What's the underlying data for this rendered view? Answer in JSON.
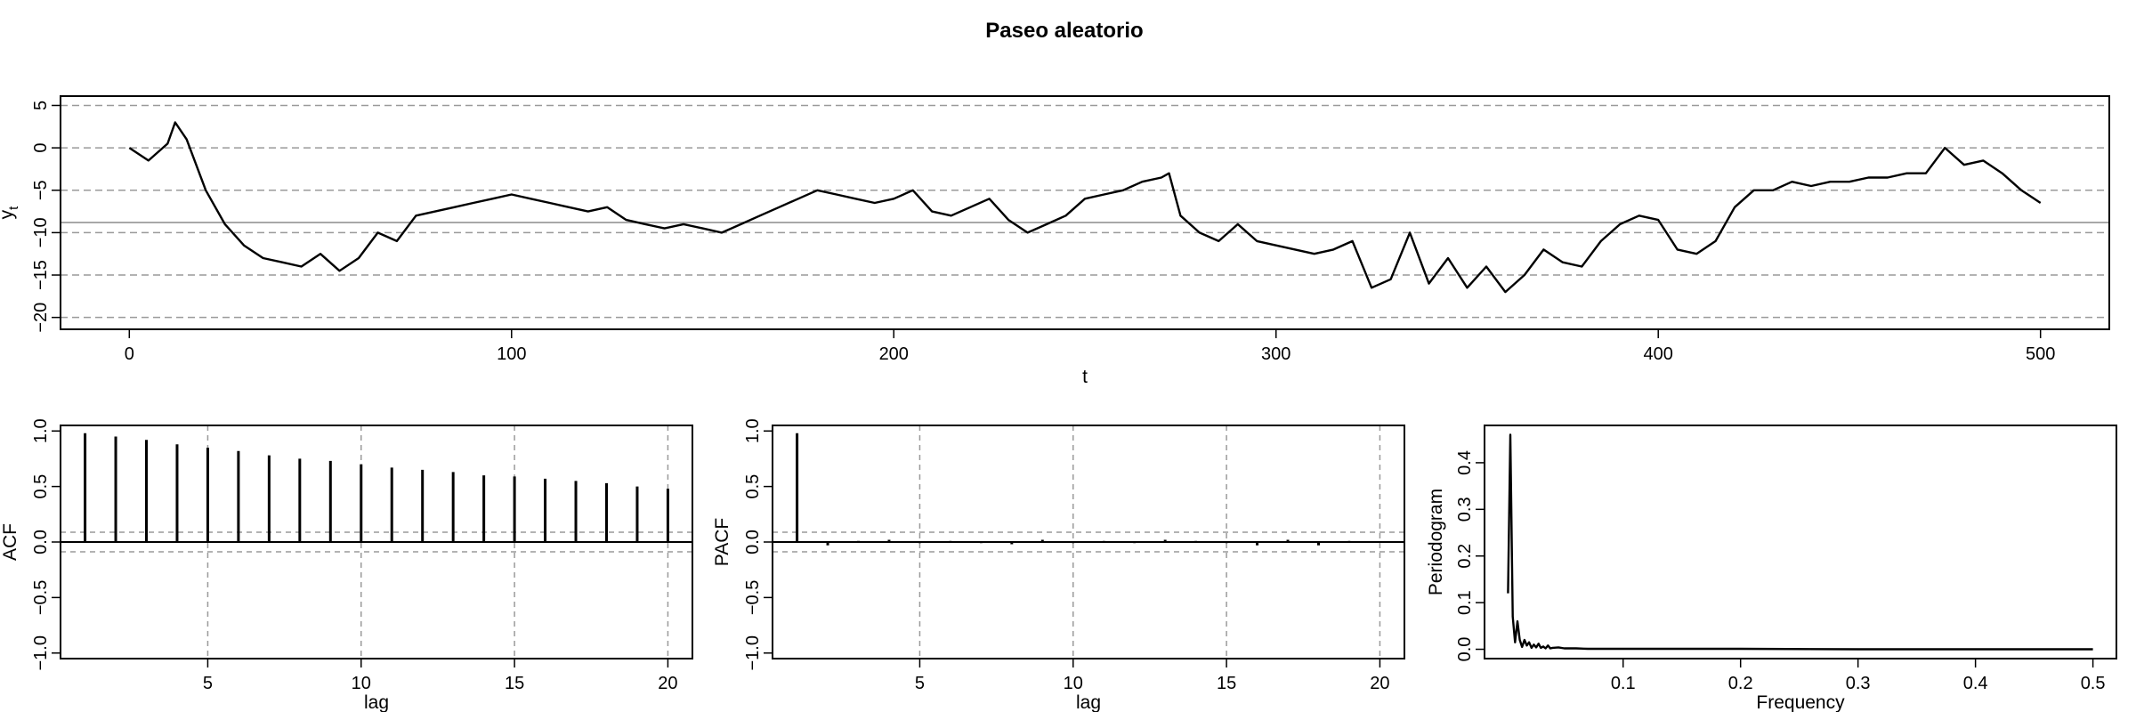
{
  "figure": {
    "title": "Paseo aleatorio"
  },
  "chart_data": [
    {
      "id": "ts",
      "type": "line",
      "title": "Paseo aleatorio",
      "xlabel": "t",
      "ylabel": "y",
      "ylabel_subscript": "t",
      "xlim": [
        -18,
        518
      ],
      "ylim": [
        -21.4,
        6.1
      ],
      "xticks": [
        0,
        100,
        200,
        300,
        400,
        500
      ],
      "yticks": [
        5,
        0,
        -5,
        -10,
        -15,
        -20
      ],
      "hlines_dashed": [
        5,
        0,
        -5,
        -10,
        -15,
        -20
      ],
      "hline_mean": -8.8,
      "x": [
        0,
        5,
        10,
        12,
        15,
        20,
        25,
        30,
        35,
        40,
        45,
        50,
        55,
        60,
        65,
        70,
        75,
        80,
        85,
        90,
        95,
        100,
        105,
        110,
        115,
        120,
        125,
        130,
        135,
        140,
        145,
        150,
        155,
        160,
        165,
        170,
        175,
        180,
        185,
        190,
        195,
        200,
        205,
        210,
        215,
        220,
        225,
        230,
        235,
        240,
        245,
        250,
        255,
        260,
        265,
        270,
        272,
        275,
        280,
        285,
        290,
        295,
        300,
        305,
        310,
        315,
        320,
        325,
        330,
        335,
        340,
        345,
        350,
        355,
        360,
        365,
        370,
        375,
        380,
        385,
        390,
        395,
        400,
        405,
        410,
        415,
        420,
        425,
        430,
        435,
        440,
        445,
        450,
        455,
        460,
        465,
        470,
        475,
        480,
        485,
        490,
        495,
        500
      ],
      "y": [
        0,
        -1.5,
        0.5,
        3,
        1,
        -5,
        -9,
        -11.5,
        -13,
        -13.5,
        -14,
        -12.5,
        -14.5,
        -13,
        -10,
        -11,
        -8,
        -7.5,
        -7,
        -6.5,
        -6,
        -5.5,
        -6,
        -6.5,
        -7,
        -7.5,
        -7,
        -8.5,
        -9,
        -9.5,
        -9,
        -9.5,
        -10,
        -9,
        -8,
        -7,
        -6,
        -5,
        -5.5,
        -6,
        -6.5,
        -6,
        -5,
        -7.5,
        -8,
        -7,
        -6,
        -8.5,
        -10,
        -9,
        -8,
        -6,
        -5.5,
        -5,
        -4,
        -3.5,
        -3,
        -8,
        -10,
        -11,
        -9,
        -11,
        -11.5,
        -12,
        -12.5,
        -12,
        -11,
        -16.5,
        -15.5,
        -10,
        -16,
        -13,
        -16.5,
        -14,
        -17,
        -15,
        -12,
        -13.5,
        -14,
        -11,
        -9,
        -8,
        -8.5,
        -12,
        -12.5,
        -11,
        -7,
        -5,
        -5,
        -4,
        -4.5,
        -4,
        -4,
        -3.5,
        -3.5,
        -3,
        -3,
        0,
        -2,
        -1.5,
        -3,
        -5,
        -6.5
      ]
    },
    {
      "id": "acf",
      "type": "bar",
      "xlabel": "lag",
      "ylabel": "ACF",
      "xlim": [
        0.2,
        20.8
      ],
      "ylim": [
        -1.05,
        1.05
      ],
      "xticks": [
        5,
        10,
        15,
        20
      ],
      "yticks": [
        1.0,
        0.5,
        0.0,
        -0.5,
        -1.0
      ],
      "ci": 0.088,
      "lags": [
        1,
        2,
        3,
        4,
        5,
        6,
        7,
        8,
        9,
        10,
        11,
        12,
        13,
        14,
        15,
        16,
        17,
        18,
        19,
        20
      ],
      "values": [
        0.98,
        0.95,
        0.92,
        0.88,
        0.85,
        0.82,
        0.78,
        0.75,
        0.73,
        0.7,
        0.67,
        0.65,
        0.63,
        0.6,
        0.59,
        0.57,
        0.55,
        0.53,
        0.5,
        0.48
      ]
    },
    {
      "id": "pacf",
      "type": "bar",
      "xlabel": "lag",
      "ylabel": "PACF",
      "xlim": [
        0.2,
        20.8
      ],
      "ylim": [
        -1.05,
        1.05
      ],
      "xticks": [
        5,
        10,
        15,
        20
      ],
      "yticks": [
        1.0,
        0.5,
        0.0,
        -0.5,
        -1.0
      ],
      "ci": 0.088,
      "lags": [
        1,
        2,
        3,
        4,
        5,
        6,
        7,
        8,
        9,
        10,
        11,
        12,
        13,
        14,
        15,
        16,
        17,
        18,
        19,
        20
      ],
      "values": [
        0.98,
        -0.03,
        0.01,
        0.02,
        -0.01,
        0.01,
        -0.01,
        -0.02,
        0.02,
        -0.01,
        0.01,
        -0.01,
        0.02,
        0.01,
        -0.01,
        -0.03,
        0.02,
        -0.03,
        0.01,
        0.0
      ]
    },
    {
      "id": "pgram",
      "type": "line",
      "xlabel": "Frequency",
      "ylabel": "Periodogram",
      "xlim": [
        -0.018,
        0.52
      ],
      "ylim": [
        -0.02,
        0.48
      ],
      "xticks": [
        0.1,
        0.2,
        0.3,
        0.4,
        0.5
      ],
      "yticks": [
        0.0,
        0.1,
        0.2,
        0.3,
        0.4
      ],
      "x": [
        0.002,
        0.004,
        0.006,
        0.008,
        0.01,
        0.012,
        0.014,
        0.016,
        0.018,
        0.02,
        0.022,
        0.024,
        0.026,
        0.028,
        0.03,
        0.032,
        0.034,
        0.036,
        0.038,
        0.04,
        0.045,
        0.05,
        0.06,
        0.07,
        0.08,
        0.1,
        0.15,
        0.2,
        0.3,
        0.4,
        0.5
      ],
      "y": [
        0.12,
        0.46,
        0.07,
        0.015,
        0.06,
        0.02,
        0.005,
        0.02,
        0.008,
        0.015,
        0.003,
        0.01,
        0.004,
        0.012,
        0.003,
        0.006,
        0.002,
        0.008,
        0.002,
        0.003,
        0.004,
        0.002,
        0.002,
        0.001,
        0.001,
        0.001,
        0.001,
        0.001,
        0.0,
        0.0,
        0.0
      ]
    }
  ]
}
